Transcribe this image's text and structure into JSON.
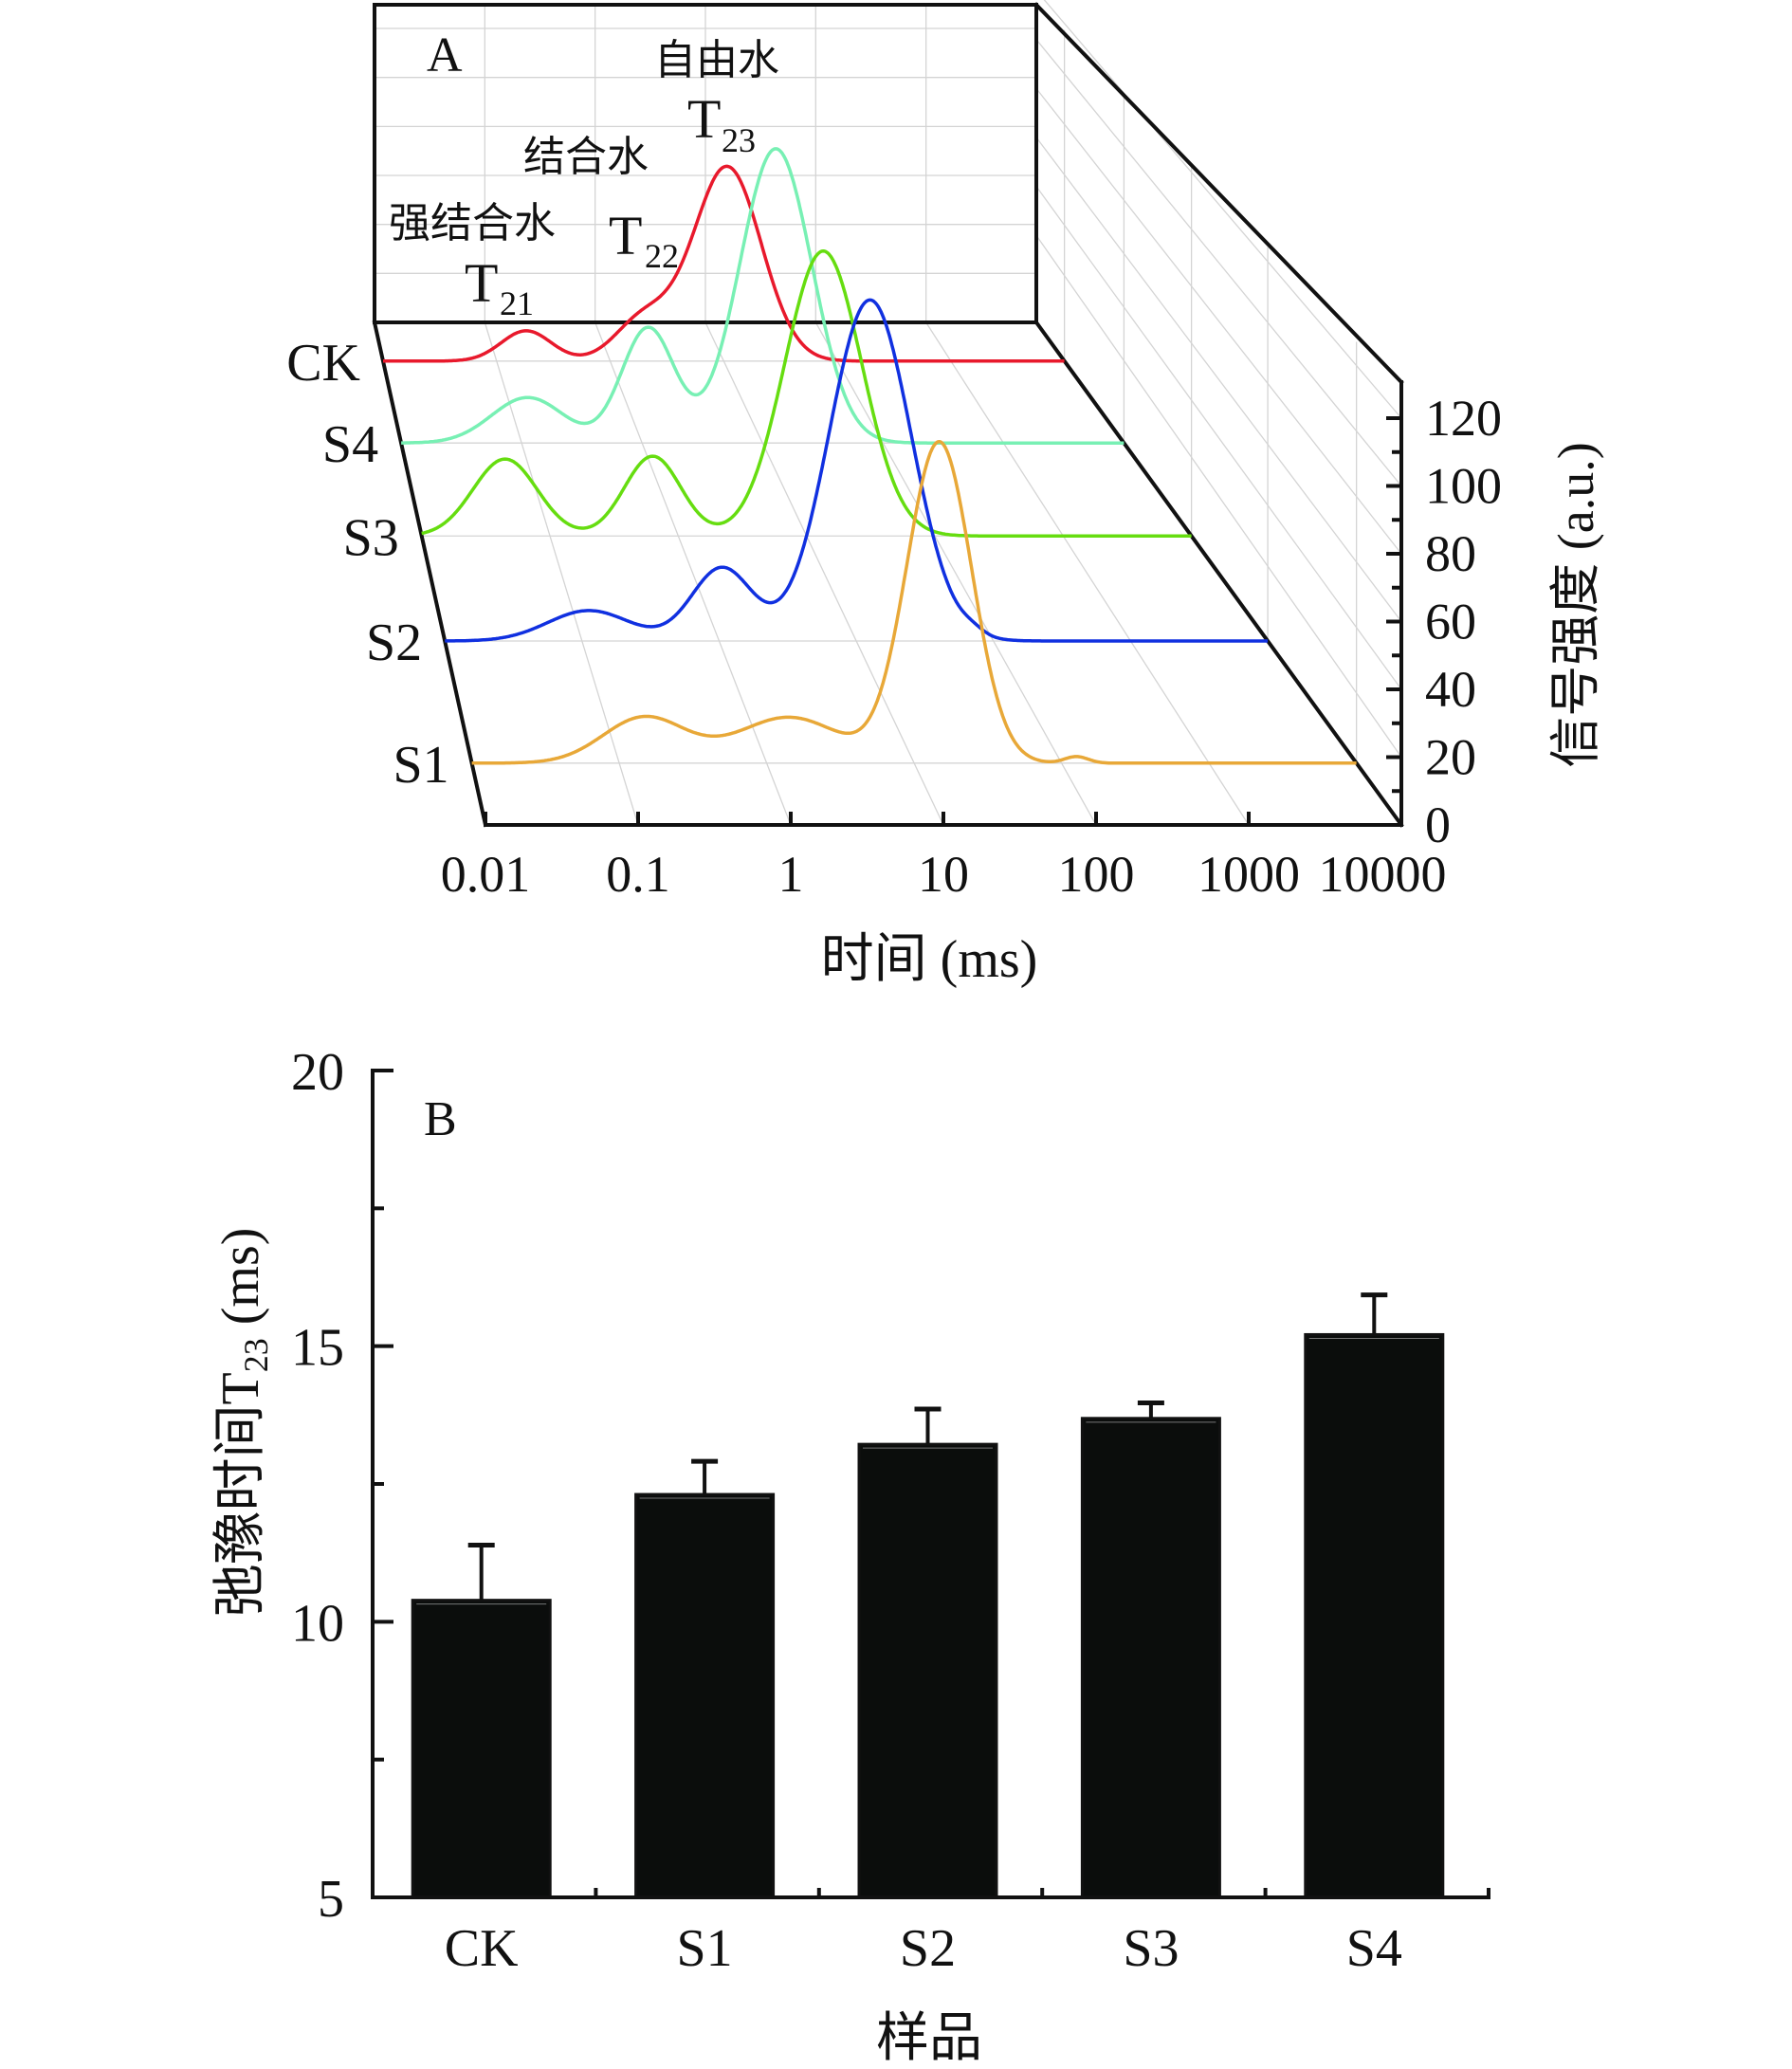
{
  "chart_data": [
    {
      "panel": "A",
      "type": "line",
      "subtype": "3d-waterfall",
      "title": "",
      "panel_label": "A",
      "xlabel": "时间 (ms)",
      "ylabel": "",
      "zlabel": "信号强度 (a.u.)",
      "xscale": "log",
      "xlim": [
        0.01,
        10000
      ],
      "x_ticks": [
        "0.01",
        "0.1",
        "1",
        "10",
        "100",
        "1000",
        "10000"
      ],
      "zlim": [
        0,
        120
      ],
      "z_ticks": [
        "0",
        "20",
        "40",
        "60",
        "80",
        "100",
        "120"
      ],
      "grid": true,
      "series_order_back_to_front": [
        "CK",
        "S4",
        "S3",
        "S2",
        "S1"
      ],
      "annotations": [
        {
          "text": "强结合水",
          "sub_main": "T",
          "sub": "21"
        },
        {
          "text": "结合水",
          "sub_main": "T",
          "sub": "22"
        },
        {
          "text": "自由水",
          "sub_main": "T",
          "sub": "23"
        }
      ],
      "series": [
        {
          "name": "CK",
          "color": "#e8192c",
          "peaks_log10_ms": [
            -0.74,
            0.3,
            1.03
          ],
          "peak_amplitudes": [
            12,
            17,
            77
          ],
          "peak_widths_log10": [
            0.22,
            0.25,
            0.3
          ],
          "minor_peaks": []
        },
        {
          "name": "S4",
          "color": "#78f0b4",
          "peaks_log10_ms": [
            -0.95,
            0.05,
            1.11
          ],
          "peak_amplitudes": [
            17,
            43,
            110
          ],
          "peak_widths_log10": [
            0.3,
            0.22,
            0.3
          ],
          "minor_peaks": []
        },
        {
          "name": "S3",
          "color": "#66dd10",
          "peaks_log10_ms": [
            -1.35,
            -0.2,
            1.13
          ],
          "peak_amplitudes": [
            27,
            28,
            100
          ],
          "peak_widths_log10": [
            0.25,
            0.22,
            0.3
          ],
          "minor_peaks": []
        },
        {
          "name": "S2",
          "color": "#1030e0",
          "peaks_log10_ms": [
            -0.95,
            0.02,
            1.1
          ],
          "peak_amplitudes": [
            10,
            24,
            112
          ],
          "peak_widths_log10": [
            0.3,
            0.22,
            0.3
          ],
          "minor_peaks": [
            {
              "log10_ms": 1.85,
              "amplitude": 1.5
            }
          ]
        },
        {
          "name": "S1",
          "color": "#e8a838",
          "peaks_log10_ms": [
            -0.83,
            0.15,
            1.17
          ],
          "peak_amplitudes": [
            14,
            14,
            98
          ],
          "peak_widths_log10": [
            0.28,
            0.35,
            0.22
          ],
          "minor_peaks": [
            {
              "log10_ms": 2.1,
              "amplitude": 2
            }
          ]
        }
      ]
    },
    {
      "panel": "B",
      "type": "bar",
      "title": "",
      "panel_label": "B",
      "xlabel": "样品",
      "ylabel_main": "弛豫时间T",
      "ylabel_sub": "23",
      "ylabel_unit": " (ms)",
      "categories": [
        "CK",
        "S1",
        "S2",
        "S3",
        "S4"
      ],
      "values": [
        10.39,
        12.31,
        13.22,
        13.69,
        15.21
      ],
      "error_plus": [
        1.0,
        0.6,
        0.64,
        0.28,
        0.72
      ],
      "ylim": [
        5,
        20
      ],
      "y_ticks": [
        "5",
        "10",
        "15",
        "20"
      ],
      "bar_color": "#0b0d0c",
      "grid": false
    }
  ]
}
